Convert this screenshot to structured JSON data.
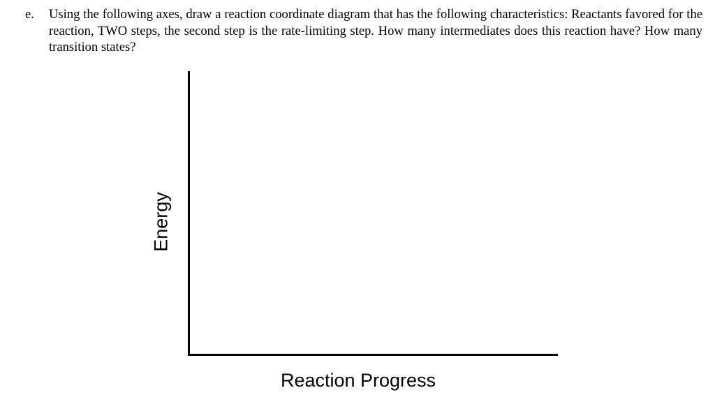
{
  "question": {
    "label": "e.",
    "text": "Using the following axes, draw a reaction coordinate diagram that has the following characteristics: Reactants favored for the reaction, TWO steps, the second step is the rate-limiting step. How many intermediates does this reaction have? How many transition states?"
  },
  "diagram": {
    "y_axis_label": "Energy",
    "x_axis_label": "Reaction Progress",
    "axis_color": "#000000"
  }
}
